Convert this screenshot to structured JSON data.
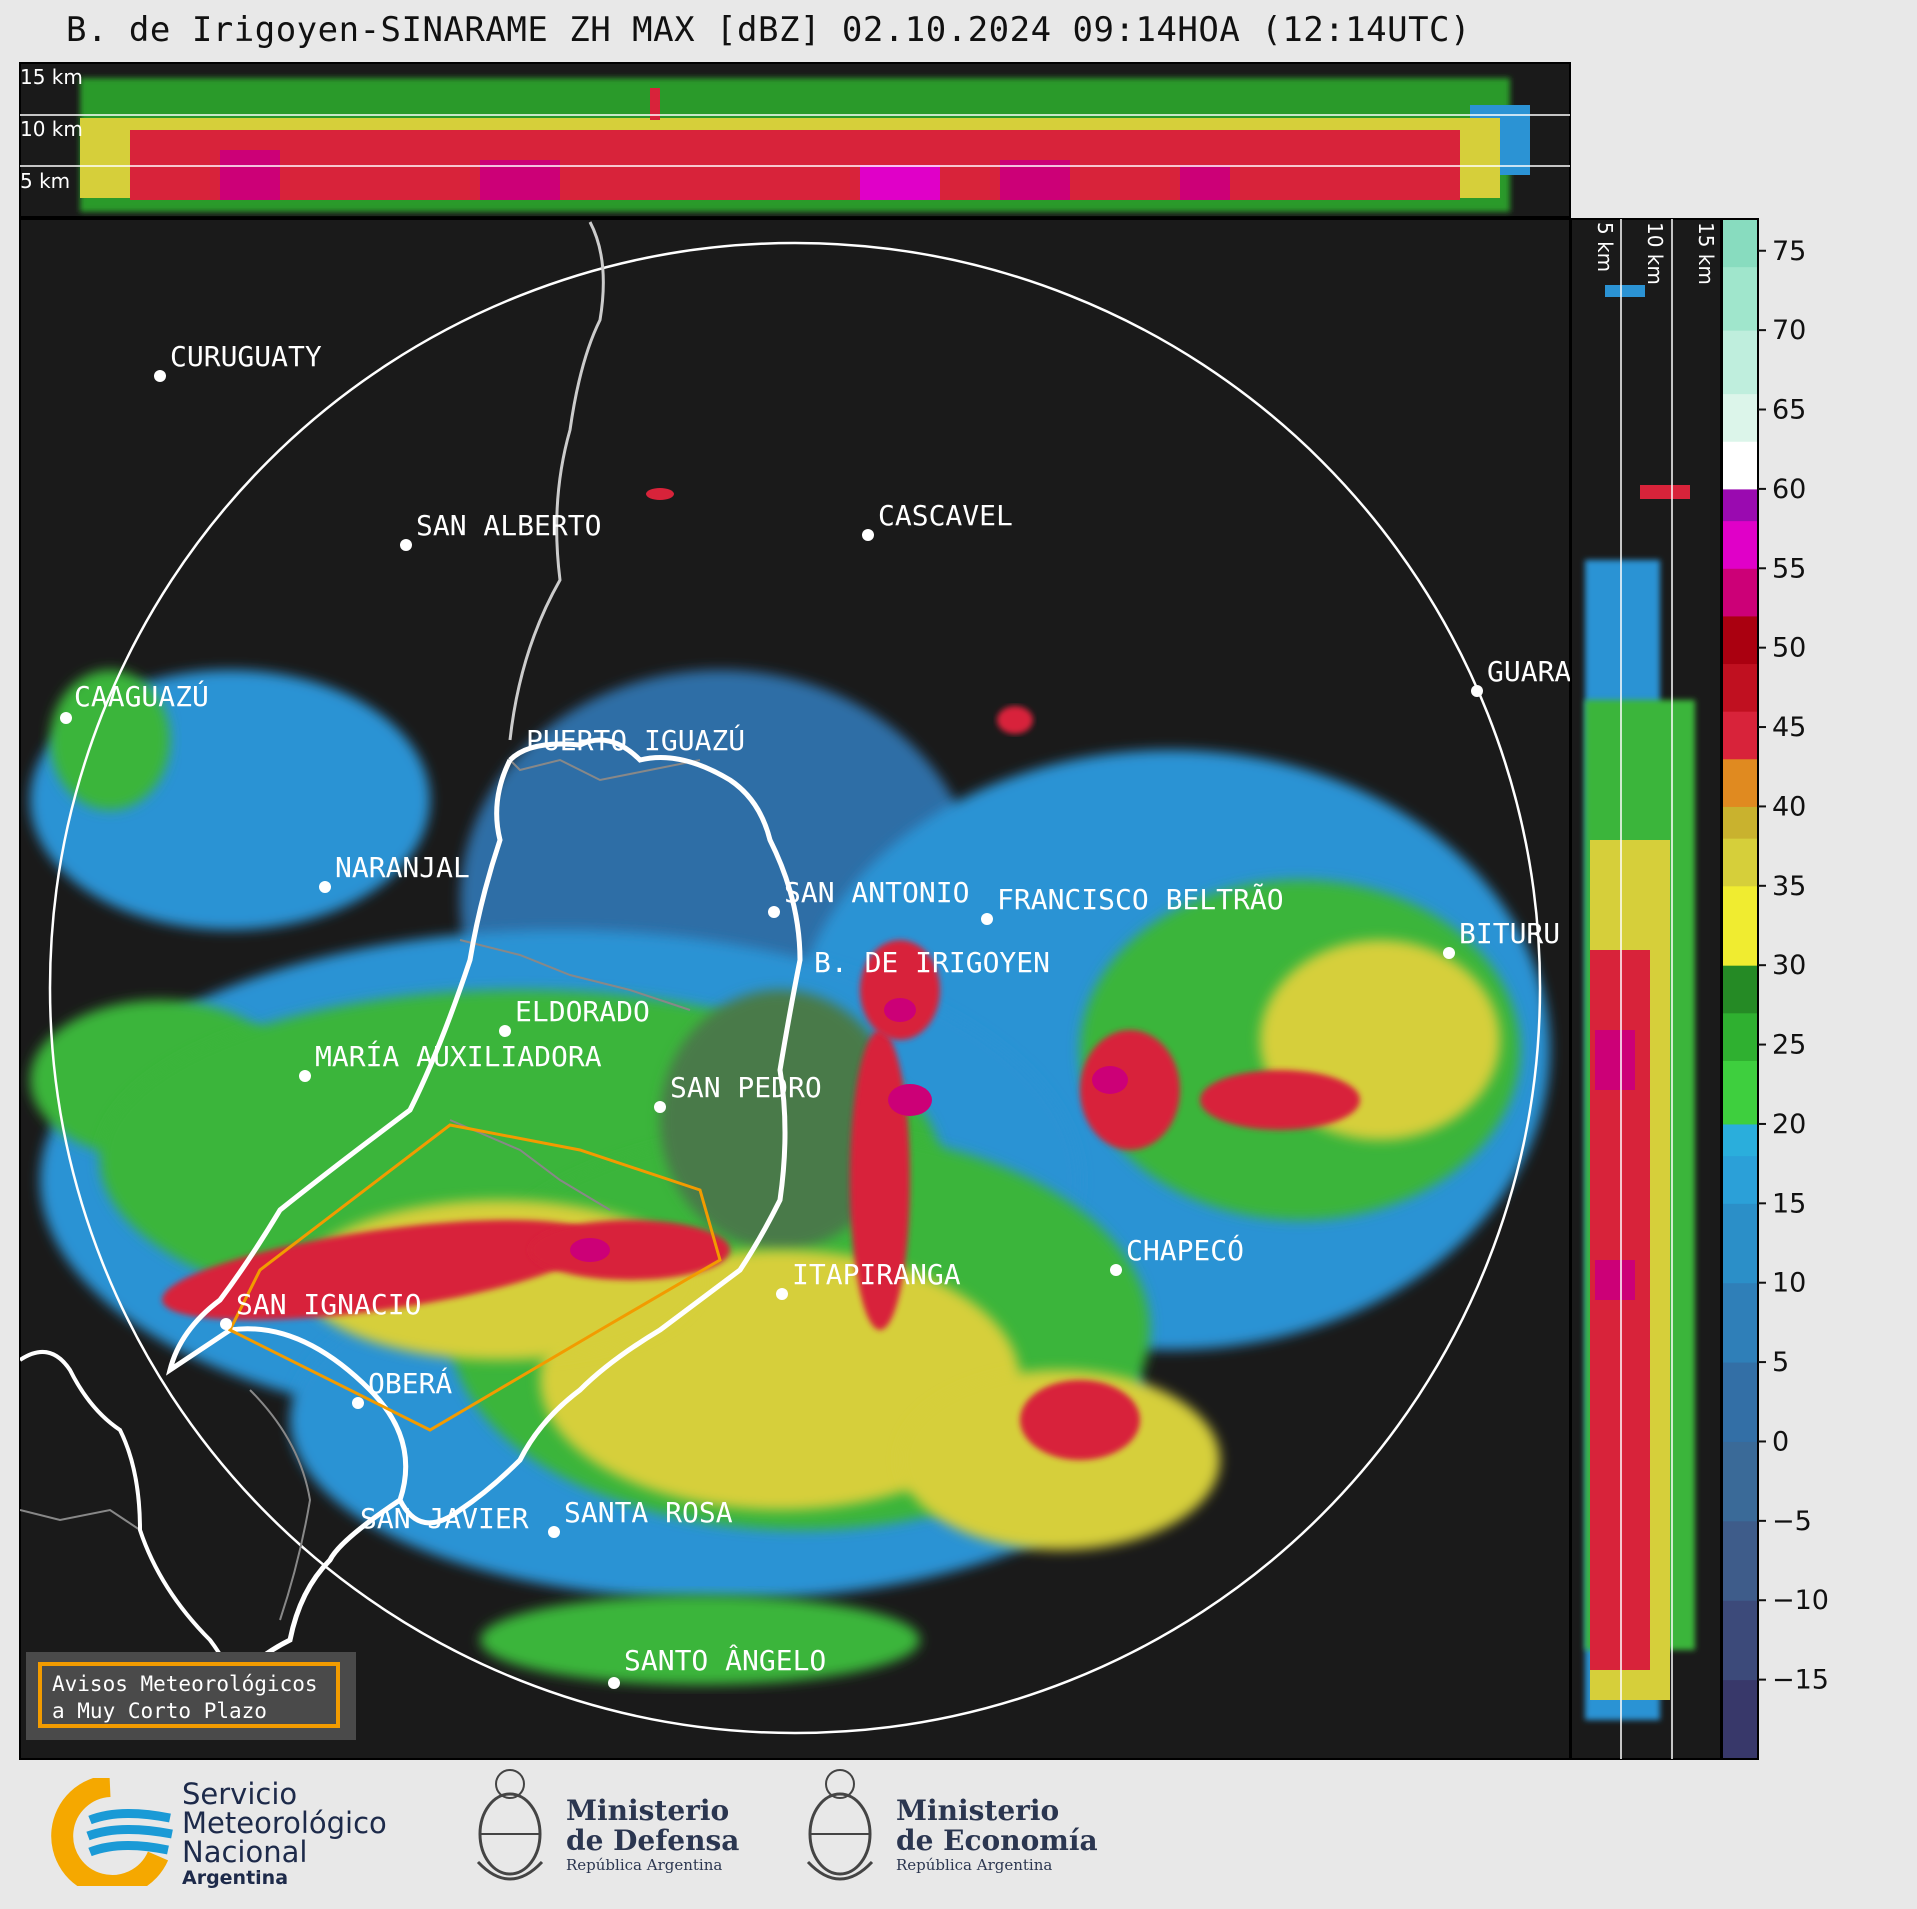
{
  "title": "B. de Irigoyen-SINARAME ZH MAX [dBZ] 02.10.2024 09:14HOA (12:14UTC)",
  "profile_top_labels": [
    "15 km",
    "10 km",
    "5 km"
  ],
  "profile_right_labels": [
    "5 km",
    "10 km",
    "15 km"
  ],
  "cities": [
    {
      "name": "CURUGUATY"
    },
    {
      "name": "SAN ALBERTO"
    },
    {
      "name": "CASCAVEL"
    },
    {
      "name": "CAAGUAZÚ"
    },
    {
      "name": "GUARA"
    },
    {
      "name": "PUERTO IGUAZÚ"
    },
    {
      "name": "NARANJAL"
    },
    {
      "name": "SAN ANTONIO"
    },
    {
      "name": "FRANCISCO BELTRÃO"
    },
    {
      "name": "BITURU"
    },
    {
      "name": "B. DE IRIGOYEN"
    },
    {
      "name": "ELDORADO"
    },
    {
      "name": "MARÍA AUXILIADORA"
    },
    {
      "name": "SAN PEDRO"
    },
    {
      "name": "ITAPIRANGA"
    },
    {
      "name": "CHAPECÓ"
    },
    {
      "name": "SAN IGNACIO"
    },
    {
      "name": "OBERÁ"
    },
    {
      "name": "SAN JAVIER"
    },
    {
      "name": "SANTA ROSA"
    },
    {
      "name": "SANTO ÂNGELO"
    }
  ],
  "colorbar": {
    "unit": "dBZ",
    "min": -20,
    "max": 77,
    "ticks": [
      "75",
      "70",
      "65",
      "60",
      "55",
      "50",
      "45",
      "40",
      "35",
      "30",
      "25",
      "20",
      "15",
      "10",
      "5",
      "0",
      "−5",
      "−10",
      "−15"
    ],
    "tick_values": [
      75,
      70,
      65,
      60,
      55,
      50,
      45,
      40,
      35,
      30,
      25,
      20,
      15,
      10,
      5,
      0,
      -5,
      -10,
      -15
    ]
  },
  "avisos": {
    "line1": "Avisos Meteorológicos",
    "line2": "a Muy Corto Plazo"
  },
  "footer": {
    "smn": [
      "Servicio",
      "Meteorológico",
      "Nacional",
      "Argentina"
    ],
    "defensa": {
      "title1": "Ministerio",
      "title2": "de Defensa",
      "sub": "República Argentina"
    },
    "economia": {
      "title1": "Ministerio",
      "title2": "de Economía",
      "sub": "República Argentina"
    }
  },
  "colors": {
    "map_bg": "#1a1a1a",
    "warning_outline": "#f29b00",
    "province_border": "#ffffff"
  }
}
